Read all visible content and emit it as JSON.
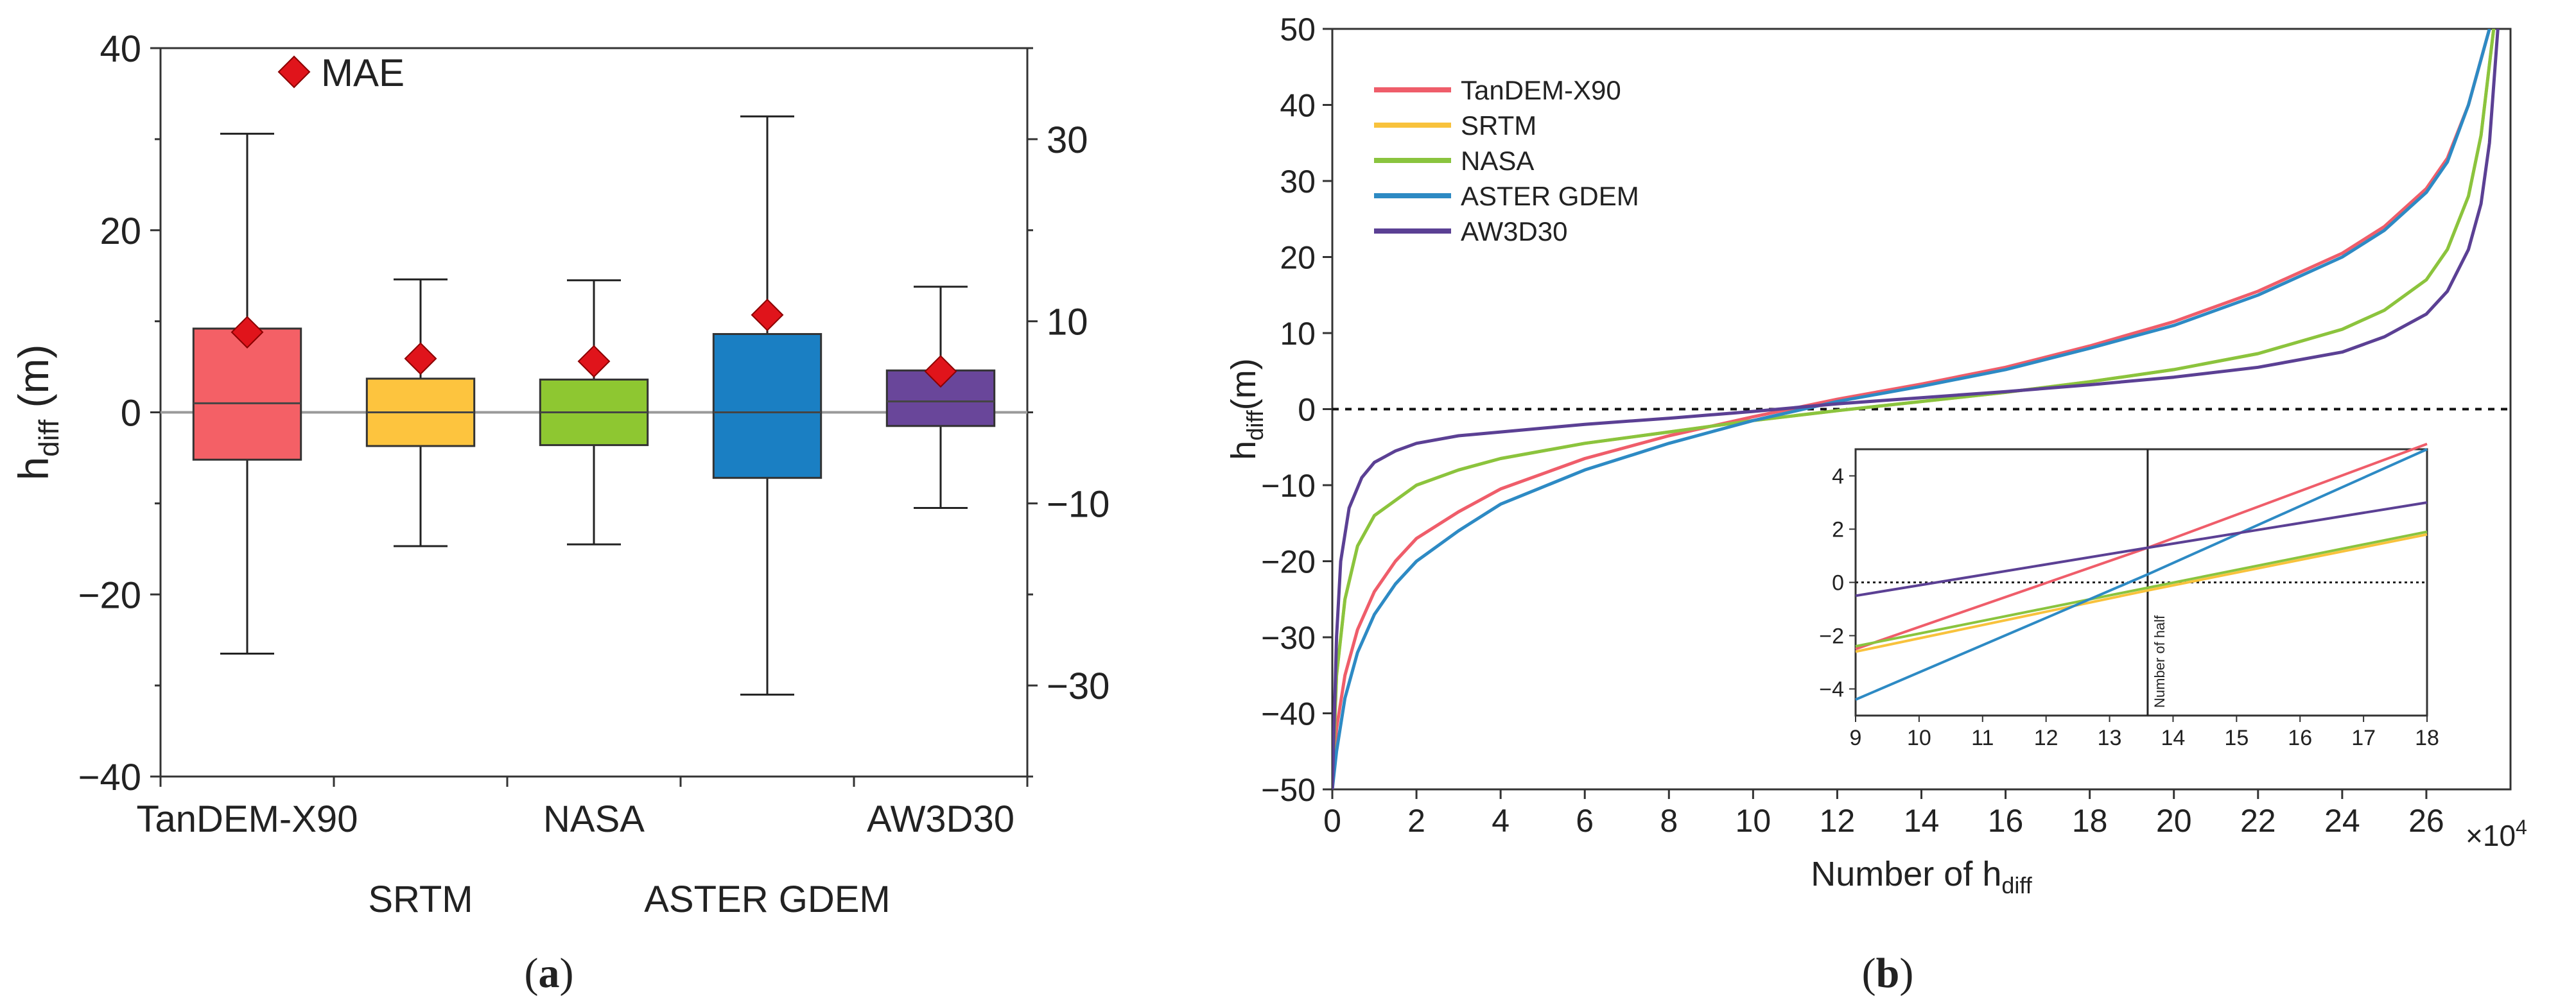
{
  "panel_a_label": "a",
  "panel_b_label": "b",
  "chart_data": [
    {
      "type": "box",
      "ylabel": "h",
      "ylabel_sub": "diff",
      "ylabel_unit": " (m)",
      "ylim": [
        -40,
        40
      ],
      "yticks": [
        -40,
        -20,
        0,
        20,
        40
      ],
      "ylim_right": [
        -40,
        40
      ],
      "yticks_right": [
        -30,
        -10,
        10,
        30
      ],
      "legend": "MAE",
      "categories": [
        "TanDEM-X90",
        "SRTM",
        "NASA",
        "ASTER GDEM",
        "AW3D30"
      ],
      "colors": [
        "#f46066",
        "#fdc43e",
        "#8ec731",
        "#1a7fc3",
        "#69469a"
      ],
      "whisker_min": [
        -26.5,
        -14.7,
        -14.5,
        -31,
        -10.5
      ],
      "q1": [
        -5.2,
        -3.7,
        -3.6,
        -7.2,
        -1.5
      ],
      "median": [
        1,
        0,
        0,
        0,
        1.2
      ],
      "q3": [
        9.2,
        3.7,
        3.6,
        8.6,
        4.6
      ],
      "whisker_max": [
        30.6,
        14.6,
        14.5,
        32.5,
        13.8
      ],
      "mae": [
        8.8,
        5.9,
        5.6,
        10.7,
        4.5
      ]
    },
    {
      "type": "line",
      "xlabel": "Number of h",
      "xlabel_sub": "diff",
      "x_multiplier": "×10",
      "x_multiplier_exp": "4",
      "ylabel": "h",
      "ylabel_sub": "diff",
      "ylabel_unit": "(m)",
      "xlim": [
        0,
        28
      ],
      "ylim": [
        -50,
        50
      ],
      "xticks": [
        0,
        2,
        4,
        6,
        8,
        10,
        12,
        14,
        16,
        18,
        20,
        22,
        24,
        26
      ],
      "yticks": [
        -50,
        -40,
        -30,
        -20,
        -10,
        0,
        10,
        20,
        30,
        40,
        50
      ],
      "series": [
        {
          "name": "TanDEM-X90",
          "color": "#ef5d6a",
          "x": [
            0,
            0.1,
            0.3,
            0.6,
            1,
            1.5,
            2,
            3,
            4,
            6,
            8,
            10,
            12,
            14,
            16,
            18,
            20,
            22,
            24,
            25,
            26,
            26.5,
            27,
            27.3,
            27.5
          ],
          "y": [
            -50,
            -42,
            -35,
            -29,
            -24,
            -20,
            -17,
            -13.5,
            -10.5,
            -6.5,
            -3.5,
            -1,
            1.3,
            3.3,
            5.5,
            8.3,
            11.5,
            15.5,
            20.5,
            24,
            29,
            33,
            40,
            46,
            50
          ]
        },
        {
          "name": "SRTM",
          "color": "#f8c23c",
          "x": [
            0,
            0.1,
            0.3,
            0.6,
            1,
            2,
            3,
            4,
            6,
            8,
            10,
            12,
            14,
            16,
            18,
            20,
            22,
            24,
            25,
            26,
            26.5,
            27,
            27.3,
            27.6
          ],
          "y": [
            -50,
            -35,
            -25,
            -18,
            -14,
            -10,
            -8,
            -6.5,
            -4.5,
            -3,
            -1.5,
            -0.2,
            1,
            2.2,
            3.6,
            5.2,
            7.3,
            10.5,
            13,
            17,
            21,
            28,
            36,
            50
          ]
        },
        {
          "name": "NASA",
          "color": "#8ac43e",
          "x": [
            0,
            0.1,
            0.3,
            0.6,
            1,
            2,
            3,
            4,
            6,
            8,
            10,
            12,
            14,
            16,
            18,
            20,
            22,
            24,
            25,
            26,
            26.5,
            27,
            27.3,
            27.6
          ],
          "y": [
            -50,
            -35,
            -25,
            -18,
            -14,
            -10,
            -8,
            -6.5,
            -4.5,
            -3,
            -1.5,
            -0.2,
            1,
            2.2,
            3.6,
            5.2,
            7.3,
            10.5,
            13,
            17,
            21,
            28,
            36,
            50
          ]
        },
        {
          "name": "ASTER GDEM",
          "color": "#2d8ac4",
          "x": [
            0,
            0.1,
            0.3,
            0.6,
            1,
            1.5,
            2,
            3,
            4,
            6,
            8,
            10,
            12,
            14,
            16,
            18,
            20,
            22,
            24,
            25,
            26,
            26.5,
            27,
            27.3,
            27.5
          ],
          "y": [
            -50,
            -45,
            -38,
            -32,
            -27,
            -23,
            -20,
            -16,
            -12.5,
            -8,
            -4.5,
            -1.5,
            1,
            3,
            5.2,
            8,
            11,
            15,
            20,
            23.5,
            28.5,
            32.5,
            40,
            46,
            50
          ]
        },
        {
          "name": "AW3D30",
          "color": "#5b4094",
          "x": [
            0,
            0.1,
            0.2,
            0.4,
            0.7,
            1,
            1.5,
            2,
            3,
            4,
            6,
            8,
            10,
            12,
            14,
            16,
            18,
            20,
            22,
            24,
            25,
            26,
            26.5,
            27,
            27.3,
            27.5,
            27.7
          ],
          "y": [
            -50,
            -30,
            -20,
            -13,
            -9,
            -7,
            -5.5,
            -4.5,
            -3.5,
            -3,
            -2,
            -1.2,
            -0.3,
            0.7,
            1.5,
            2.3,
            3.2,
            4.2,
            5.5,
            7.5,
            9.5,
            12.5,
            15.5,
            21,
            27,
            35,
            50
          ]
        }
      ],
      "inset": {
        "xlim": [
          9,
          18
        ],
        "ylim": [
          -5,
          5
        ],
        "xticks": [
          9,
          10,
          11,
          12,
          13,
          14,
          15,
          16,
          17,
          18
        ],
        "yticks": [
          -4,
          -2,
          0,
          2,
          4
        ],
        "vline_x": 13.6,
        "vline_label": "Number of half",
        "series": [
          {
            "name": "TanDEM-X90",
            "color": "#ef5d6a",
            "x": [
              9,
              13.6,
              18
            ],
            "y": [
              -2.5,
              1.3,
              5.2
            ]
          },
          {
            "name": "SRTM",
            "color": "#f8c23c",
            "x": [
              9,
              13.6,
              18
            ],
            "y": [
              -2.6,
              -0.3,
              1.8
            ]
          },
          {
            "name": "NASA",
            "color": "#8ac43e",
            "x": [
              9,
              13.6,
              18
            ],
            "y": [
              -2.4,
              -0.2,
              1.9
            ]
          },
          {
            "name": "ASTER GDEM",
            "color": "#2d8ac4",
            "x": [
              9,
              13.6,
              18
            ],
            "y": [
              -4.4,
              0.3,
              5
            ]
          },
          {
            "name": "AW3D30",
            "color": "#5b4094",
            "x": [
              9,
              13.6,
              18
            ],
            "y": [
              -0.5,
              1.3,
              3.0
            ]
          }
        ]
      }
    }
  ]
}
